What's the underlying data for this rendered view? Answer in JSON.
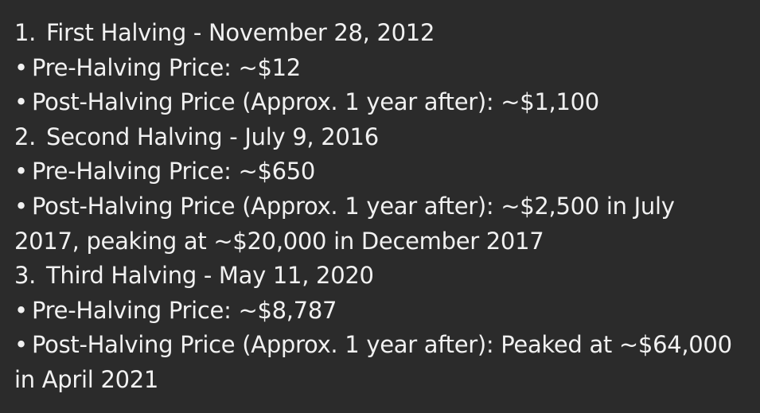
{
  "sections": [
    {
      "number": "1.",
      "heading": "First Halving - November 28, 2012",
      "pre_bullet": "•",
      "pre": "Pre-Halving Price: ~$12",
      "post_bullet": "•",
      "post": "Post-Halving Price (Approx. 1 year after): ~$1,100"
    },
    {
      "number": "2.",
      "heading": "Second Halving - July 9, 2016",
      "pre_bullet": "•",
      "pre": "Pre-Halving Price: ~$650",
      "post_bullet": "•",
      "post": "Post-Halving Price (Approx. 1 year after): ~$2,500 in July 2017, peaking at ~$20,000 in December 2017"
    },
    {
      "number": "3.",
      "heading": "Third Halving - May 11, 2020",
      "pre_bullet": "•",
      "pre": "Pre-Halving Price: ~$8,787",
      "post_bullet": "•",
      "post": "Post-Halving Price (Approx. 1 year after): Peaked at ~$64,000 in April 2021"
    }
  ]
}
